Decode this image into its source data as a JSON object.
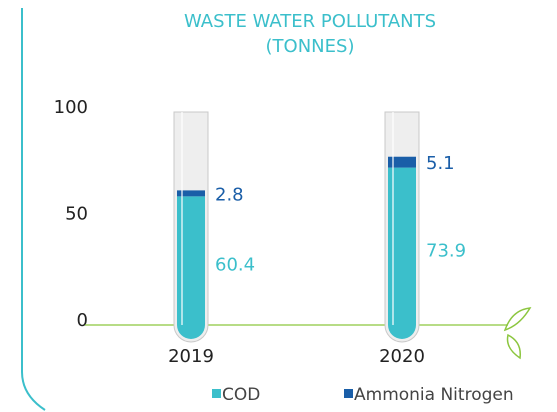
{
  "chart_data": {
    "type": "stacked-bar",
    "title": "WASTE WATER POLLUTANTS",
    "subtitle": "(TONNES)",
    "categories": [
      "2019",
      "2020"
    ],
    "series": [
      {
        "name": "COD",
        "color": "#3bbfcb",
        "values": [
          60.4,
          73.9
        ]
      },
      {
        "name": "Ammonia Nitrogen",
        "color": "#1a5ea8",
        "values": [
          2.8,
          5.1
        ]
      }
    ],
    "ylim": [
      0,
      100
    ],
    "yticks": [
      0,
      50,
      100
    ],
    "legend": "bottom"
  }
}
